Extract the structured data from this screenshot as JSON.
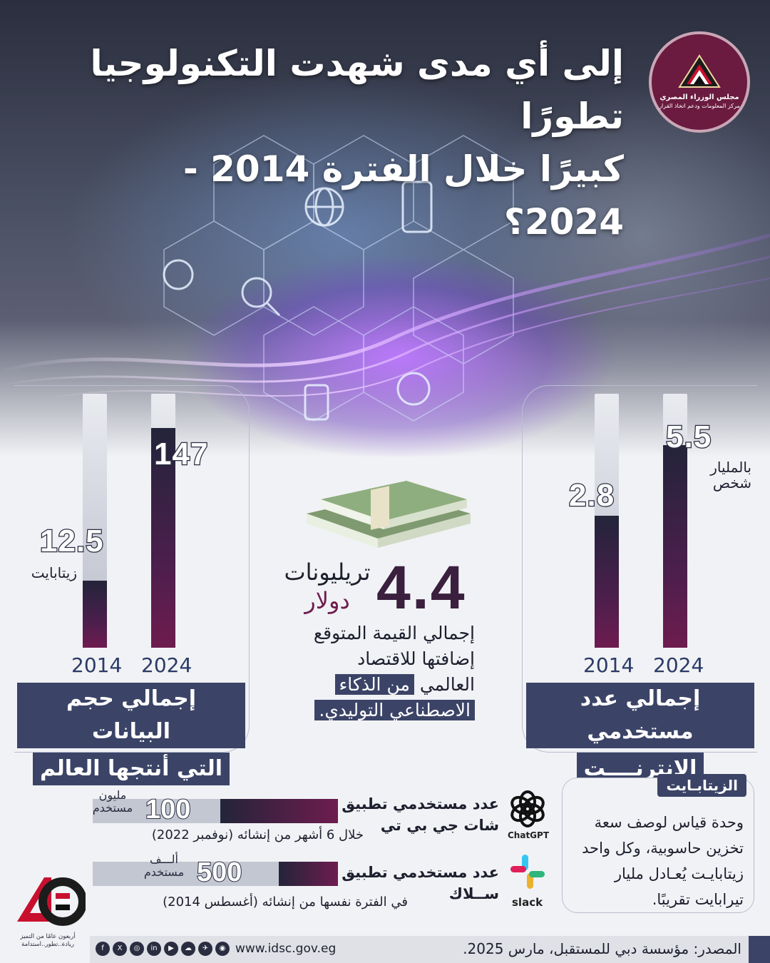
{
  "title": {
    "line1": "إلى أي مدى شهدت التكنولوجيا تطورًا",
    "line2": "كبيرًا خلال الفترة 2014 - 2024؟"
  },
  "logo": {
    "line1": "مجلس الوزراء المصري",
    "line2": "مركز المعلومات ودعم اتخاذ القرار"
  },
  "colors": {
    "navy": "#3b4467",
    "maroon": "#6e1c4f",
    "dark": "#23243a"
  },
  "chart_data": [
    {
      "type": "bar",
      "categories": [
        "2014",
        "2024"
      ],
      "values": [
        12.5,
        147
      ],
      "unit": "زيتابايت",
      "value_labels": [
        "12.5",
        "147"
      ],
      "caption_line1": "إجمالي حجم البيانات",
      "caption_line2": "التي أنتجها العالم"
    },
    {
      "type": "bar",
      "categories": [
        "2014",
        "2024"
      ],
      "values": [
        2.8,
        5.5
      ],
      "unit_line1": "بالمليار",
      "unit_line2": "شخص",
      "value_labels": [
        "2.8",
        "5.5"
      ],
      "caption_line1": "إجمالي عدد مستخدمي",
      "caption_line2": "الإنترنــــت"
    },
    {
      "type": "bar",
      "orientation": "horizontal",
      "categories": [
        "ChatGPT",
        "slack"
      ],
      "values": [
        100,
        500
      ],
      "value_labels": [
        "100",
        "500"
      ]
    }
  ],
  "middle": {
    "value": "4.4",
    "unit_line1": "تريليونات",
    "unit_line2": "دولار",
    "desc_line1": "إجمالي القيمة المتوقع",
    "desc_line2": "إضافتها للاقتصاد",
    "desc_line3_plain": "العالمي",
    "desc_line3_hl": "من الذكاء",
    "desc_line4_hl": "الاصطناعي التوليدي."
  },
  "zettabyte": {
    "tag": "الزيتابـايت",
    "text": "وحدة قياس لوصف سعة تخزين حاسوبية، وكل واحد زيتابايـت يُعـادل مليار تيرابايت تقريبًا."
  },
  "apps": [
    {
      "name": "ChatGPT",
      "title_line1": "عدد مستخدمي تطبيق",
      "title_line2": "شات جي بي تي",
      "value": "100",
      "unit_line1": "مليون",
      "unit_line2": "مستخدم",
      "note": "خلال 6 أشهر من إنشائه (نوفمبر 2022)"
    },
    {
      "name": "slack",
      "title_line1": "عدد مستخدمي تطبيق",
      "title_line2": "ســلاك",
      "value": "500",
      "unit_line1": "ألـــف",
      "unit_line2": "مستخدم",
      "note": "في الفترة نفسها من إنشائه (أغسطس 2014)"
    }
  ],
  "badge": {
    "line1": "أربعون عامًا من التميز",
    "line2": "ريادة..تطور..استدامة"
  },
  "footer": {
    "source": "المصدر: مؤسسة دبي للمستقبل، مارس 2025.",
    "url": "www.idsc.gov.eg",
    "social": [
      "f",
      "X",
      "◎",
      "in",
      "▶",
      "☁",
      "✈",
      "◉"
    ]
  }
}
